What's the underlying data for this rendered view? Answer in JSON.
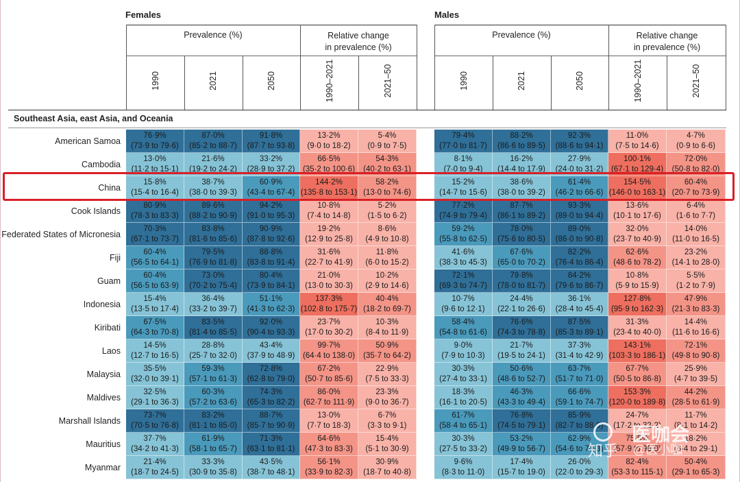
{
  "header": {
    "females": "Females",
    "males": "Males",
    "prevalence": "Prevalence (%)",
    "relchange_line1": "Relative change",
    "relchange_line2": "in prevalence (%)",
    "years": [
      "1990",
      "2021",
      "2050",
      "1990–2021",
      "2021–50"
    ]
  },
  "region": "Southeast Asia, east Asia, and Oceania",
  "colors": {
    "blue_dark": "#2f6f98",
    "blue_mid": "#4a9abc",
    "blue_light": "#86c3d6",
    "red_dark": "#ee6f5f",
    "red_mid": "#f39487",
    "red_light": "#f8b2a8",
    "highlight": "#d91f26"
  },
  "rows": [
    {
      "country": "American Samoa",
      "f": [
        [
          "76·9%",
          "(73·9 to 79·6)"
        ],
        [
          "87·0%",
          "(85·2 to 88·7)"
        ],
        [
          "91·8%",
          "(87·7 to 93·8)"
        ],
        [
          "13·2%",
          "(9·0 to 18·2)"
        ],
        [
          "5·4%",
          "(0·9 to 7·5)"
        ]
      ],
      "m": [
        [
          "79·4%",
          "(77·0 to 81·7)"
        ],
        [
          "88·2%",
          "(86·6 to 89·5)"
        ],
        [
          "92·3%",
          "(88·6 to 94·1)"
        ],
        [
          "11·0%",
          "(7·5 to 14·6)"
        ],
        [
          "4·7%",
          "(0·9 to 6·6)"
        ]
      ]
    },
    {
      "country": "Cambodia",
      "f": [
        [
          "13·0%",
          "(11·2 to 15·1)"
        ],
        [
          "21·6%",
          "(19·2 to 24·2)"
        ],
        [
          "33·2%",
          "(28·9 to 37·2)"
        ],
        [
          "66·5%",
          "(35·2 to 100·6)"
        ],
        [
          "54·3%",
          "(40·2 to 63·1)"
        ]
      ],
      "m": [
        [
          "8·1%",
          "(7·0 to 9·4)"
        ],
        [
          "16·2%",
          "(14·4 to 17·9)"
        ],
        [
          "27·9%",
          "(24·0 to 31·2)"
        ],
        [
          "100·1%",
          "(67·1 to 129·4)"
        ],
        [
          "72·0%",
          "(50·8 to 82·0)"
        ]
      ]
    },
    {
      "country": "China",
      "f": [
        [
          "15·8%",
          "(15·4 to 16·4)"
        ],
        [
          "38·7%",
          "(38·0 to 39·3)"
        ],
        [
          "60·9%",
          "(43·4 to 67·4)"
        ],
        [
          "144·2%",
          "(135·8 to 153·1)"
        ],
        [
          "58·2%",
          "(13·0 to 74·6)"
        ]
      ],
      "m": [
        [
          "15·2%",
          "(14·7 to 15·6)"
        ],
        [
          "38·6%",
          "(38·0 to 39·2)"
        ],
        [
          "61·4%",
          "(46·2 to 66·6)"
        ],
        [
          "154·5%",
          "(146·0 to 163·1)"
        ],
        [
          "60·4%",
          "(20·7 to 73·9)"
        ]
      ]
    },
    {
      "country": "Cook Islands",
      "f": [
        [
          "80·9%",
          "(78·3 to 83·3)"
        ],
        [
          "89·6%",
          "(88·2 to 90·9)"
        ],
        [
          "94·2%",
          "(91·0 to 95·3)"
        ],
        [
          "10·8%",
          "(7·4 to 14·8)"
        ],
        [
          "5·2%",
          "(1·5 to 6·2)"
        ]
      ],
      "m": [
        [
          "77·2%",
          "(74·9 to 79·4)"
        ],
        [
          "87·7%",
          "(86·1 to 89·2)"
        ],
        [
          "93·3%",
          "(89·0 to 94·4)"
        ],
        [
          "13·6%",
          "(10·1 to 17·6)"
        ],
        [
          "6·4%",
          "(1·6 to 7·7)"
        ]
      ]
    },
    {
      "country": "Federated States of Micronesia",
      "f": [
        [
          "70·3%",
          "(67·1 to 73·7)"
        ],
        [
          "83·8%",
          "(81·6 to 85·6)"
        ],
        [
          "90·9%",
          "(87·8 to 92·6)"
        ],
        [
          "19·2%",
          "(12·9 to 25·8)"
        ],
        [
          "8·6%",
          "(4·9 to 10·8)"
        ]
      ],
      "m": [
        [
          "59·2%",
          "(55·8 to 62·5)"
        ],
        [
          "78·0%",
          "(75·6 to 80·5)"
        ],
        [
          "89·0%",
          "(86·0 to 90·8)"
        ],
        [
          "32·0%",
          "(23·7 to 40·9)"
        ],
        [
          "14·0%",
          "(11·0 to 16·5)"
        ]
      ]
    },
    {
      "country": "Fiji",
      "f": [
        [
          "60·4%",
          "(56·5 to 64·1)"
        ],
        [
          "79·5%",
          "(76·9 to 81·8)"
        ],
        [
          "88·8%",
          "(83·8 to 91·4)"
        ],
        [
          "31·6%",
          "(22·7 to 41·9)"
        ],
        [
          "11·8%",
          "(6·0 to 15·2)"
        ]
      ],
      "m": [
        [
          "41·6%",
          "(38·3 to 45·3)"
        ],
        [
          "67·6%",
          "(65·0 to 70·2)"
        ],
        [
          "82·2%",
          "(76·4 to 86·4)"
        ],
        [
          "62·6%",
          "(48·6 to 78·2)"
        ],
        [
          "23·2%",
          "(14·1 to 28·0)"
        ]
      ]
    },
    {
      "country": "Guam",
      "f": [
        [
          "60·4%",
          "(56·5 to 63·9)"
        ],
        [
          "73·0%",
          "(70·2 to 75·4)"
        ],
        [
          "80·4%",
          "(73·9 to 84·1)"
        ],
        [
          "21·0%",
          "(13·0 to 30·3)"
        ],
        [
          "10·2%",
          "(2·9 to 14·6)"
        ]
      ],
      "m": [
        [
          "72·1%",
          "(69·3 to 74·7)"
        ],
        [
          "79·8%",
          "(78·0 to 81·7)"
        ],
        [
          "84·2%",
          "(79·6 to 86·7)"
        ],
        [
          "10·8%",
          "(5·9 to 15·9)"
        ],
        [
          "5·5%",
          "(1·2 to 7·9)"
        ]
      ]
    },
    {
      "country": "Indonesia",
      "f": [
        [
          "15·4%",
          "(13·5 to 17·4)"
        ],
        [
          "36·4%",
          "(33·2 to 39·7)"
        ],
        [
          "51·1%",
          "(41·3 to 62·3)"
        ],
        [
          "137·3%",
          "(102·8 to 175·7)"
        ],
        [
          "40·4%",
          "(18·2 to 69·7)"
        ]
      ],
      "m": [
        [
          "10·7%",
          "(9·6 to 12·1)"
        ],
        [
          "24·4%",
          "(22·1 to 26·6)"
        ],
        [
          "36·1%",
          "(28·4 to 45·4)"
        ],
        [
          "127·8%",
          "(95·9 to 162·3)"
        ],
        [
          "47·9%",
          "(21·3 to 83·3)"
        ]
      ]
    },
    {
      "country": "Kiribati",
      "f": [
        [
          "67·5%",
          "(64·3 to 70·8)"
        ],
        [
          "83·5%",
          "(81·4 to 85·5)"
        ],
        [
          "92·0%",
          "(90·4 to 93·3)"
        ],
        [
          "23·7%",
          "(17·0 to 30·2)"
        ],
        [
          "10·3%",
          "(8·4 to 11·9)"
        ]
      ],
      "m": [
        [
          "58·4%",
          "(54·8 to 61·6)"
        ],
        [
          "76·6%",
          "(74·3 to 78·8)"
        ],
        [
          "87·5%",
          "(85·3 to 89·1)"
        ],
        [
          "31·3%",
          "(23·4 to 40·0)"
        ],
        [
          "14·4%",
          "(11·6 to 16·6)"
        ]
      ]
    },
    {
      "country": "Laos",
      "f": [
        [
          "14·5%",
          "(12·7 to 16·5)"
        ],
        [
          "28·8%",
          "(25·7 to 32·0)"
        ],
        [
          "43·4%",
          "(37·9 to 48·9)"
        ],
        [
          "99·7%",
          "(64·4 to 138·0)"
        ],
        [
          "50·9%",
          "(35·7 to 64·2)"
        ]
      ],
      "m": [
        [
          "9·0%",
          "(7·9 to 10·3)"
        ],
        [
          "21·7%",
          "(19·5 to 24·1)"
        ],
        [
          "37·3%",
          "(31·4 to 42·9)"
        ],
        [
          "143·1%",
          "(103·3 to 186·1)"
        ],
        [
          "72·1%",
          "(49·8 to 90·8)"
        ]
      ]
    },
    {
      "country": "Malaysia",
      "f": [
        [
          "35·5%",
          "(32·0 to 39·1)"
        ],
        [
          "59·3%",
          "(57·1 to 61·3)"
        ],
        [
          "72·8%",
          "(62·8 to 79·0)"
        ],
        [
          "67·2%",
          "(50·7 to 85·6)"
        ],
        [
          "22·9%",
          "(7·5 to 33·3)"
        ]
      ],
      "m": [
        [
          "30·3%",
          "(27·4 to 33·1)"
        ],
        [
          "50·6%",
          "(48·6 to 52·7)"
        ],
        [
          "63·7%",
          "(51·7 to 71·0)"
        ],
        [
          "67·7%",
          "(50·5 to 86·8)"
        ],
        [
          "25·9%",
          "(4·7 to 39·5)"
        ]
      ]
    },
    {
      "country": "Maldives",
      "f": [
        [
          "32·5%",
          "(29·1 to 36·3)"
        ],
        [
          "60·3%",
          "(57·2 to 63·6)"
        ],
        [
          "74·3%",
          "(65·3 to 82·2)"
        ],
        [
          "86·0%",
          "(62·7 to 111·9)"
        ],
        [
          "23·3%",
          "(9·0 to 36·7)"
        ]
      ],
      "m": [
        [
          "18·3%",
          "(16·1 to 20·5)"
        ],
        [
          "46·3%",
          "(43·3 to 49·4)"
        ],
        [
          "66·6%",
          "(59·1 to 74·7)"
        ],
        [
          "153·3%",
          "(120·0 to 189·8)"
        ],
        [
          "44·2%",
          "(28·5 to 61·9)"
        ]
      ]
    },
    {
      "country": "Marshall Islands",
      "f": [
        [
          "73·7%",
          "(70·5 to 76·8)"
        ],
        [
          "83·2%",
          "(81·1 to 85·0)"
        ],
        [
          "88·7%",
          "(85·7 to 90·9)"
        ],
        [
          "13·0%",
          "(7·7 to 18·3)"
        ],
        [
          "6·7%",
          "(3·3 to 9·1)"
        ]
      ],
      "m": [
        [
          "61·7%",
          "(58·4 to 65·1)"
        ],
        [
          "76·8%",
          "(74·5 to 79·1)"
        ],
        [
          "85·9%",
          "(82·7 to 88·0)"
        ],
        [
          "24·7%",
          "(17·2 to 32·2)"
        ],
        [
          "11·7%",
          "(8·1 to 14·2)"
        ]
      ]
    },
    {
      "country": "Mauritius",
      "f": [
        [
          "37·7%",
          "(34·2 to 41·3)"
        ],
        [
          "61·9%",
          "(58·1 to 65·7)"
        ],
        [
          "71·3%",
          "(63·1 to 81·1)"
        ],
        [
          "64·6%",
          "(47·3 to 83·3)"
        ],
        [
          "15·4%",
          "(5·1 to 30·9)"
        ]
      ],
      "m": [
        [
          "30·3%",
          "(27·5 to 33·2)"
        ],
        [
          "53·2%",
          "(49·9 to 56·7)"
        ],
        [
          "62·9%",
          "(54·6 to 70·3)"
        ],
        [
          "75·5%",
          "(57·9 to 96·0)"
        ],
        [
          "18·2%",
          "(6·4 to 29·1)"
        ]
      ]
    },
    {
      "country": "Myanmar",
      "f": [
        [
          "21·4%",
          "(18·7 to 24·5)"
        ],
        [
          "33·3%",
          "(30·9 to 35·8)"
        ],
        [
          "43·5%",
          "(38·7 to 48·1)"
        ],
        [
          "56·1%",
          "(33·9 to 82·3)"
        ],
        [
          "30·9%",
          "(18·7 to 40·8)"
        ]
      ],
      "m": [
        [
          "9·6%",
          "(8·3 to 11·0)"
        ],
        [
          "17·4%",
          "(15·7 to 19·0)"
        ],
        [
          "26·0%",
          "(22·0 to 29·3)"
        ],
        [
          "82·4%",
          "(53·3 to 115·1)"
        ],
        [
          "50·4%",
          "(29·1 to 65·3)"
        ]
      ]
    }
  ],
  "watermark": {
    "brand1": "知乎",
    "brand2": "@医小咖",
    "brand3": "医咖会"
  }
}
